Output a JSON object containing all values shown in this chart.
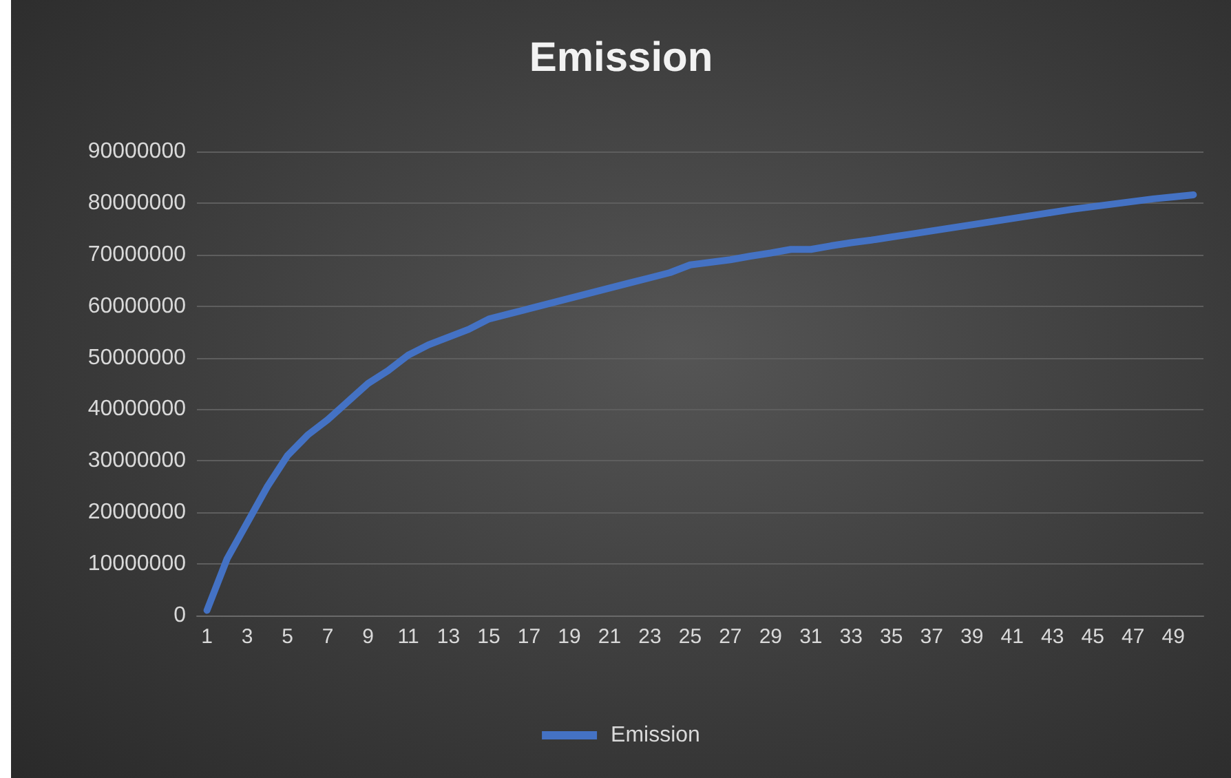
{
  "chart_data": {
    "type": "line",
    "title": "Emission",
    "x": [
      1,
      2,
      3,
      4,
      5,
      6,
      7,
      8,
      9,
      10,
      11,
      12,
      13,
      14,
      15,
      16,
      17,
      18,
      19,
      20,
      21,
      22,
      23,
      24,
      25,
      26,
      27,
      28,
      29,
      30,
      31,
      32,
      33,
      34,
      35,
      36,
      37,
      38,
      39,
      40,
      41,
      42,
      43,
      44,
      45,
      46,
      47,
      48,
      49,
      50
    ],
    "xlim": [
      0.5,
      50.5
    ],
    "xticks": [
      1,
      3,
      5,
      7,
      9,
      11,
      13,
      15,
      17,
      19,
      21,
      23,
      25,
      27,
      29,
      31,
      33,
      35,
      37,
      39,
      41,
      43,
      45,
      47,
      49
    ],
    "series": [
      {
        "name": "Emission",
        "color": "#4472c4",
        "values": [
          1000000,
          11000000,
          18000000,
          25000000,
          31000000,
          35000000,
          38000000,
          41500000,
          45000000,
          47500000,
          50500000,
          52500000,
          54000000,
          55500000,
          57500000,
          58500000,
          59500000,
          60500000,
          61500000,
          62500000,
          63500000,
          64500000,
          65500000,
          66500000,
          68000000,
          68500000,
          69000000,
          69700000,
          70300000,
          71000000,
          71000000,
          71700000,
          72300000,
          72800000,
          73400000,
          74000000,
          74600000,
          75200000,
          75800000,
          76400000,
          77000000,
          77600000,
          78200000,
          78800000,
          79300000,
          79800000,
          80300000,
          80800000,
          81200000,
          81600000
        ]
      }
    ],
    "ylim": [
      0,
      90000000
    ],
    "yticks": [
      0,
      10000000,
      20000000,
      30000000,
      40000000,
      50000000,
      60000000,
      70000000,
      80000000,
      90000000
    ],
    "grid": "y",
    "legend": "bottom",
    "marker": "none",
    "line_style": "solid"
  }
}
